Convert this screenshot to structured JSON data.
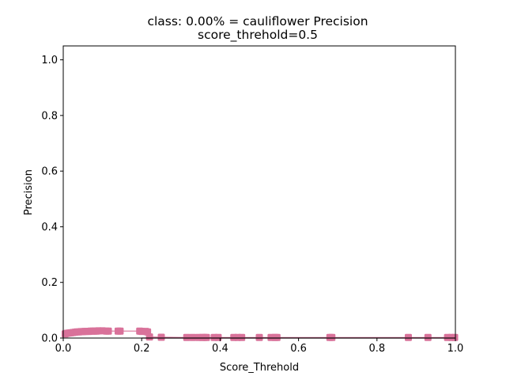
{
  "chart_data": {
    "type": "scatter",
    "title_line1": "class: 0.00% = cauliflower Precision",
    "title_line2": "score_threhold=0.5",
    "xlabel": "Score_Threhold",
    "ylabel": "Precision",
    "xlim": [
      0.0,
      1.0
    ],
    "ylim": [
      0.0,
      1.05
    ],
    "xticks": [
      "0.0",
      "0.2",
      "0.4",
      "0.6",
      "0.8",
      "1.0"
    ],
    "yticks": [
      "0.0",
      "0.2",
      "0.4",
      "0.6",
      "0.8",
      "1.0"
    ],
    "grid": false,
    "marker_color": "#d9729a",
    "series": [
      {
        "x": [
          0.005,
          0.01,
          0.015,
          0.02,
          0.025,
          0.03,
          0.035,
          0.04,
          0.045,
          0.05,
          0.055,
          0.06,
          0.065,
          0.07,
          0.075,
          0.08,
          0.085,
          0.09,
          0.1,
          0.11,
          0.115,
          0.14,
          0.145,
          0.195,
          0.2,
          0.21,
          0.215,
          0.22,
          0.25,
          0.315,
          0.33,
          0.345,
          0.355,
          0.36,
          0.365,
          0.385,
          0.395,
          0.435,
          0.445,
          0.455,
          0.5,
          0.53,
          0.54,
          0.545,
          0.68,
          0.685,
          0.88,
          0.93,
          0.98,
          0.99,
          0.998
        ],
        "y": [
          0.015,
          0.017,
          0.018,
          0.019,
          0.02,
          0.021,
          0.022,
          0.022,
          0.023,
          0.023,
          0.024,
          0.024,
          0.024,
          0.025,
          0.025,
          0.025,
          0.025,
          0.026,
          0.026,
          0.025,
          0.025,
          0.025,
          0.025,
          0.025,
          0.024,
          0.024,
          0.022,
          0.004,
          0.003,
          0.002,
          0.002,
          0.002,
          0.002,
          0.002,
          0.002,
          0.002,
          0.002,
          0.002,
          0.002,
          0.002,
          0.002,
          0.002,
          0.002,
          0.002,
          0.002,
          0.002,
          0.002,
          0.002,
          0.002,
          0.002,
          0.002
        ]
      }
    ]
  }
}
